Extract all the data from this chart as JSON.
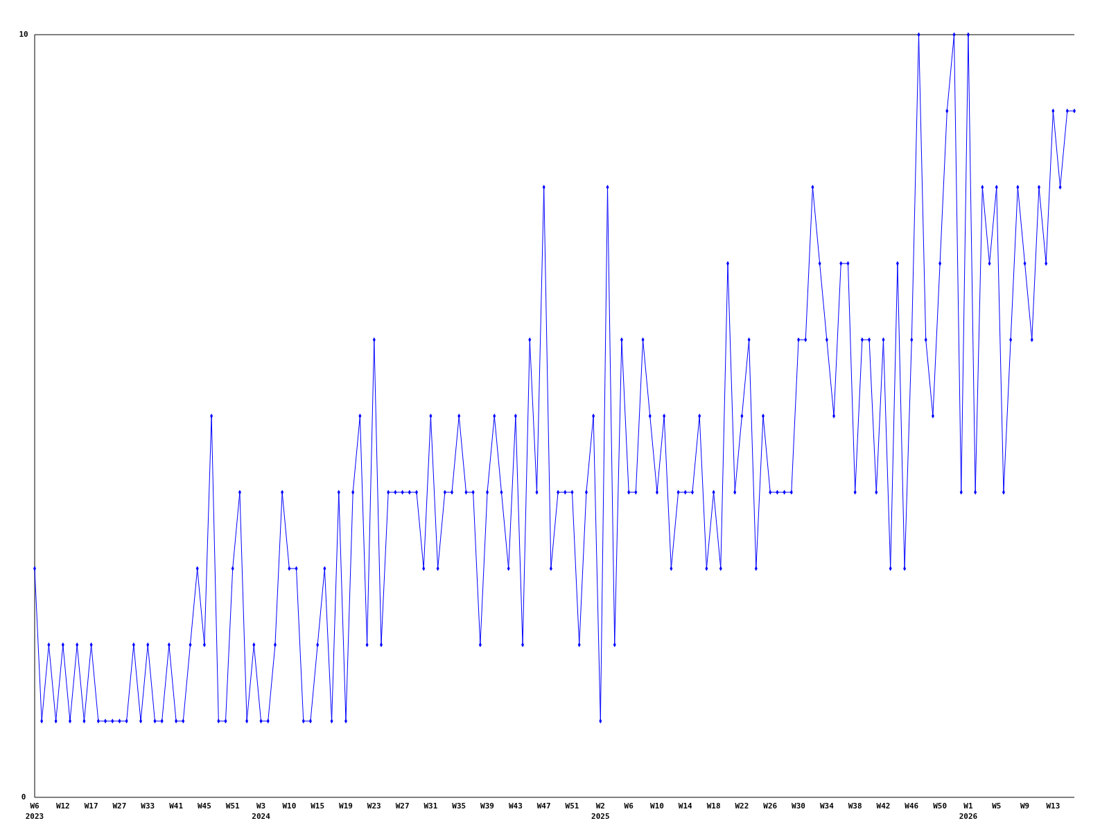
{
  "chart_data": {
    "type": "line",
    "categories": [
      "W6\n2023",
      null,
      null,
      null,
      "W12",
      null,
      null,
      null,
      "W17",
      null,
      null,
      null,
      "W27",
      null,
      null,
      null,
      "W33",
      null,
      null,
      null,
      "W41",
      null,
      null,
      null,
      "W45",
      null,
      null,
      null,
      "W51",
      null,
      null,
      null,
      "W3\n2024",
      null,
      null,
      null,
      "W10",
      null,
      null,
      null,
      "W15",
      null,
      null,
      null,
      "W19",
      null,
      null,
      null,
      "W23",
      null,
      null,
      null,
      "W27",
      null,
      null,
      null,
      "W31",
      null,
      null,
      null,
      "W35",
      null,
      null,
      null,
      "W39",
      null,
      null,
      null,
      "W43",
      null,
      null,
      null,
      "W47",
      null,
      null,
      null,
      "W51",
      null,
      null,
      null,
      "W2\n2025",
      null,
      null,
      null,
      "W6",
      null,
      null,
      null,
      "W10",
      null,
      null,
      null,
      "W14",
      null,
      null,
      null,
      "W18",
      null,
      null,
      null,
      "W22",
      null,
      null,
      null,
      "W26",
      null,
      null,
      null,
      "W30",
      null,
      null,
      null,
      "W34",
      null,
      null,
      null,
      "W38",
      null,
      null,
      null,
      "W42",
      null,
      null,
      null,
      "W46",
      null,
      null,
      null,
      "W50",
      null,
      null,
      null,
      "W1\n2026",
      null,
      null,
      null,
      "W5",
      null,
      null,
      null,
      "W9",
      null,
      null,
      null,
      "W13",
      null,
      null,
      null
    ],
    "series": [
      {
        "color": "#0000ff",
        "values": [
          3,
          1,
          2,
          1,
          2,
          1,
          2,
          1,
          2,
          1,
          1,
          1,
          1,
          1,
          2,
          1,
          2,
          1,
          1,
          2,
          1,
          1,
          2,
          3,
          2,
          5,
          1,
          1,
          3,
          4,
          1,
          2,
          1,
          1,
          2,
          4,
          3,
          3,
          1,
          1,
          2,
          3,
          1,
          4,
          1,
          4,
          5,
          2,
          6,
          2,
          4,
          4,
          4,
          4,
          4,
          3,
          5,
          3,
          4,
          4,
          5,
          4,
          4,
          2,
          4,
          5,
          4,
          3,
          5,
          2,
          6,
          4,
          8,
          3,
          4,
          4,
          4,
          2,
          4,
          5,
          1,
          8,
          2,
          6,
          4,
          4,
          6,
          5,
          4,
          5,
          3,
          4,
          4,
          4,
          5,
          3,
          4,
          3,
          7,
          4,
          5,
          6,
          3,
          5,
          4,
          4,
          4,
          4,
          6,
          6,
          8,
          7,
          6,
          5,
          7,
          7,
          4,
          6,
          6,
          4,
          6,
          3,
          7,
          3,
          6,
          10,
          6,
          5,
          7,
          9,
          10,
          4,
          10,
          4,
          8,
          7,
          8,
          4,
          6,
          8,
          7,
          6,
          8,
          7,
          9,
          8,
          9,
          9
        ]
      }
    ],
    "ylim": [
      0,
      10
    ],
    "yticks": [
      0,
      10
    ],
    "grid": false,
    "marker": "diamond",
    "line_style": "solid"
  }
}
